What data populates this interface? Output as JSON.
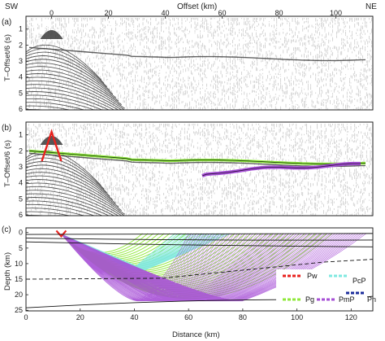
{
  "figure": {
    "top_left_label": "SW",
    "top_right_label": "NE",
    "top_axis_title": "Offset (km)",
    "top_axis_ticks": [
      "0",
      "20",
      "40",
      "60",
      "80",
      "100"
    ],
    "panels": [
      {
        "id": "a",
        "label": "(a)",
        "ylabel": "T–Offset/6 (s)",
        "yticks": [
          "1",
          "2",
          "3",
          "4",
          "5",
          "6"
        ]
      },
      {
        "id": "b",
        "label": "(b)",
        "ylabel": "T–Offset/6 (s)",
        "yticks": [
          "1",
          "2",
          "3",
          "4",
          "5",
          "6"
        ]
      },
      {
        "id": "c",
        "label": "(c)",
        "ylabel": "Depth (km)",
        "yticks": [
          "0",
          "5",
          "10",
          "15",
          "20",
          "25"
        ],
        "xlabel": "Distance (km)",
        "xticks": [
          "0",
          "20",
          "40",
          "60",
          "80",
          "100",
          "120"
        ]
      }
    ],
    "legend": [
      {
        "label": "Pw",
        "color": "#e8221e"
      },
      {
        "label": "PcP",
        "color": "#7fe8e0"
      },
      {
        "label": "Pg",
        "color": "#8fe83a"
      },
      {
        "label": "PmP",
        "color": "#a64fd6"
      },
      {
        "label": "Pn",
        "color": "#1c2e9c"
      }
    ]
  },
  "colors": {
    "pw": "#e8221e",
    "pcp": "#7fe8e0",
    "pg": "#8fe83a",
    "pmp": "#a64fd6",
    "pn": "#1c2e9c",
    "axis": "#222222",
    "seismic": "#555555"
  }
}
